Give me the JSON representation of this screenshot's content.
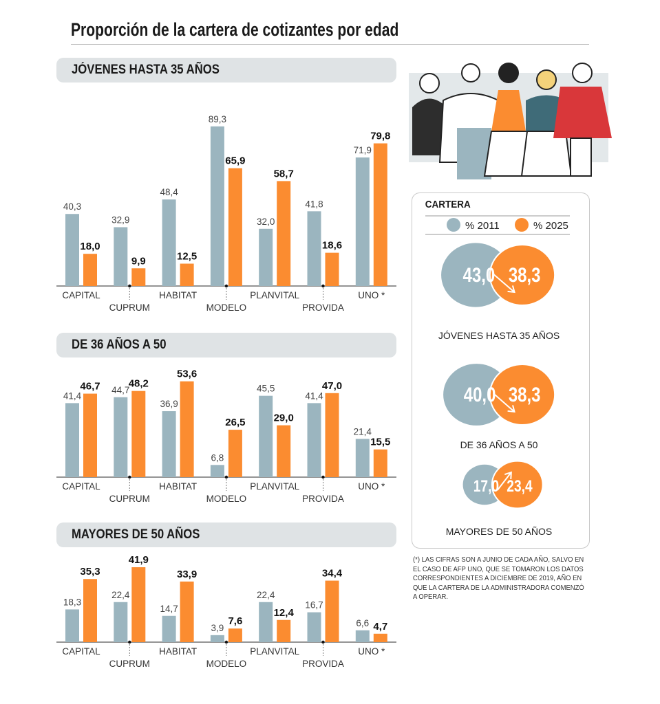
{
  "title": "Proporción de la cartera de cotizantes por edad",
  "colors": {
    "y2011": "#9bb5bf",
    "y2025": "#fb8c30",
    "pill": "#dfe3e5",
    "illustration_red": "#d9373a",
    "illustration_teal": "#3f6b78"
  },
  "chart_data": [
    {
      "type": "bar",
      "title": "JÓVENES HASTA 35 AÑOS",
      "categories": [
        "CAPITAL",
        "CUPRUM",
        "HABITAT",
        "MODELO",
        "PLANVITAL",
        "PROVIDA",
        "UNO *"
      ],
      "series": [
        {
          "name": "% 2011",
          "values": [
            40.3,
            32.9,
            48.4,
            89.3,
            32.0,
            41.8,
            71.9
          ],
          "labels": [
            "40,3",
            "32,9",
            "48,4",
            "89,3",
            "32,0",
            "41,8",
            "71,9"
          ]
        },
        {
          "name": "% 2025",
          "values": [
            18.0,
            9.9,
            12.5,
            65.9,
            58.7,
            18.6,
            79.8
          ],
          "labels": [
            "18,0",
            "9,9",
            "12,5",
            "65,9",
            "58,7",
            "18,6",
            "79,8"
          ]
        }
      ],
      "ylim": [
        0,
        100
      ],
      "grid": false
    },
    {
      "type": "bar",
      "title": "DE 36 AÑOS A 50",
      "categories": [
        "CAPITAL",
        "CUPRUM",
        "HABITAT",
        "MODELO",
        "PLANVITAL",
        "PROVIDA",
        "UNO *"
      ],
      "series": [
        {
          "name": "% 2011",
          "values": [
            41.4,
            44.7,
            36.9,
            6.8,
            45.5,
            41.4,
            21.4
          ],
          "labels": [
            "41,4",
            "44,7",
            "36,9",
            "6,8",
            "45,5",
            "41,4",
            "21,4"
          ]
        },
        {
          "name": "% 2025",
          "values": [
            46.7,
            48.2,
            53.6,
            26.5,
            29.0,
            47.0,
            15.5
          ],
          "labels": [
            "46,7",
            "48,2",
            "53,6",
            "26,5",
            "29,0",
            "47,0",
            "15,5"
          ]
        }
      ],
      "ylim": [
        0,
        100
      ],
      "grid": false
    },
    {
      "type": "bar",
      "title": "MAYORES DE 50 AÑOS",
      "categories": [
        "CAPITAL",
        "CUPRUM",
        "HABITAT",
        "MODELO",
        "PLANVITAL",
        "PROVIDA",
        "UNO *"
      ],
      "series": [
        {
          "name": "% 2011",
          "values": [
            18.3,
            22.4,
            14.7,
            3.9,
            22.4,
            16.7,
            6.6
          ],
          "labels": [
            "18,3",
            "22,4",
            "14,7",
            "3,9",
            "22,4",
            "16,7",
            "6,6"
          ]
        },
        {
          "name": "% 2025",
          "values": [
            35.3,
            41.9,
            33.9,
            7.6,
            12.4,
            34.4,
            4.7
          ],
          "labels": [
            "35,3",
            "41,9",
            "33,9",
            "7,6",
            "12,4",
            "34,4",
            "4,7"
          ]
        }
      ],
      "ylim": [
        0,
        100
      ],
      "grid": false
    }
  ],
  "cartera": {
    "title": "CARTERA",
    "legend": [
      "% 2011",
      "% 2025"
    ],
    "groups": [
      {
        "label": "JÓVENES HASTA 35 AÑOS",
        "v2011": 43.0,
        "v2025": 38.3,
        "t2011": "43,0",
        "t2025": "38,3"
      },
      {
        "label": "DE 36 AÑOS A 50",
        "v2011": 40.0,
        "v2025": 38.3,
        "t2011": "40,0",
        "t2025": "38,3"
      },
      {
        "label": "MAYORES DE 50 AÑOS",
        "v2011": 17.0,
        "v2025": 23.4,
        "t2011": "17,0",
        "t2025": "23,4"
      }
    ]
  },
  "footnote": "(*) LAS CIFRAS SON A JUNIO DE CADA AÑO, SALVO EN EL CASO DE AFP UNO, QUE SE TOMARON LOS DATOS CORRESPONDIENTES A DICIEMBRE DE 2019, AÑO EN QUE LA CARTERA DE LA ADMINISTRADORA COMENZÓ A OPERAR."
}
